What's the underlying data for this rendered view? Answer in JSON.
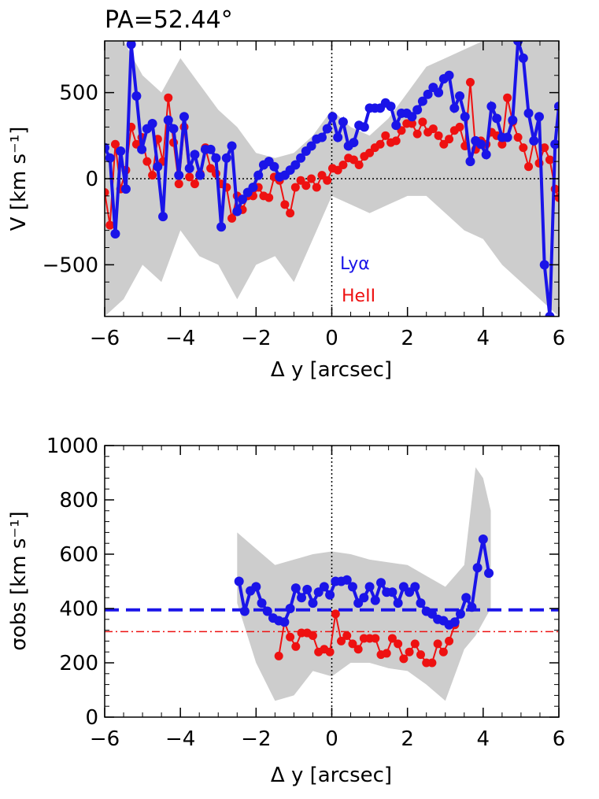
{
  "chart_data": [
    {
      "type": "line",
      "title": "PA=52.44°",
      "xlabel": "Δ y [arcsec]",
      "ylabel": "V [km s⁻¹]",
      "xlim": [
        -6,
        6
      ],
      "ylim": [
        -800,
        800
      ],
      "xticks": [
        "−6",
        "−4",
        "−2",
        "0",
        "2",
        "4",
        "6"
      ],
      "yticks": [
        "−500",
        "0",
        "500"
      ],
      "ytick_values": [
        -500,
        0,
        500
      ],
      "xtick_values": [
        -6,
        -4,
        -2,
        0,
        2,
        4,
        6
      ],
      "reference_lines": {
        "horizontal": 0,
        "vertical": 0
      },
      "annotations": [
        "Lyα",
        "HeII"
      ],
      "band": {
        "x": [
          -6.0,
          -5.5,
          -5.0,
          -4.5,
          -4.0,
          -3.5,
          -3.0,
          -2.5,
          -2.0,
          -1.5,
          -1.0,
          -0.5,
          0.0,
          0.5,
          1.0,
          1.5,
          2.0,
          2.5,
          3.0,
          3.5,
          4.0,
          4.5,
          5.0,
          5.5,
          6.0
        ],
        "upper": [
          800,
          800,
          600,
          500,
          700,
          550,
          400,
          300,
          150,
          120,
          150,
          250,
          400,
          300,
          250,
          350,
          500,
          650,
          700,
          750,
          800,
          800,
          800,
          800,
          800
        ],
        "lower": [
          -800,
          -700,
          -500,
          -600,
          -300,
          -450,
          -500,
          -700,
          -500,
          -450,
          -600,
          -350,
          -100,
          -150,
          -200,
          -150,
          -100,
          -100,
          -200,
          -300,
          -350,
          -500,
          -600,
          -700,
          -800
        ]
      },
      "series": [
        {
          "name": "Lyα",
          "color": "#1a14e8",
          "x": [
            -6.0,
            -5.86,
            -5.72,
            -5.58,
            -5.44,
            -5.3,
            -5.16,
            -5.02,
            -4.88,
            -4.74,
            -4.6,
            -4.46,
            -4.32,
            -4.18,
            -4.04,
            -3.9,
            -3.76,
            -3.62,
            -3.48,
            -3.34,
            -3.2,
            -3.06,
            -2.92,
            -2.78,
            -2.64,
            -2.5,
            -2.36,
            -2.22,
            -2.08,
            -1.94,
            -1.8,
            -1.66,
            -1.52,
            -1.38,
            -1.24,
            -1.1,
            -0.96,
            -0.82,
            -0.68,
            -0.54,
            -0.4,
            -0.26,
            -0.12,
            0.02,
            0.16,
            0.3,
            0.44,
            0.58,
            0.72,
            0.86,
            1.0,
            1.14,
            1.28,
            1.42,
            1.56,
            1.7,
            1.84,
            1.98,
            2.12,
            2.26,
            2.4,
            2.54,
            2.68,
            2.82,
            2.96,
            3.1,
            3.24,
            3.38,
            3.52,
            3.66,
            3.8,
            3.94,
            4.08,
            4.22,
            4.36,
            4.5,
            4.64,
            4.78,
            4.92,
            5.06,
            5.2,
            5.34,
            5.48,
            5.62,
            5.76,
            5.9,
            6.0
          ],
          "values": [
            180,
            120,
            -320,
            160,
            -60,
            780,
            480,
            170,
            290,
            320,
            70,
            -220,
            340,
            290,
            20,
            360,
            60,
            140,
            20,
            170,
            170,
            120,
            -280,
            120,
            190,
            -190,
            -120,
            -80,
            -50,
            20,
            80,
            100,
            70,
            10,
            20,
            50,
            80,
            120,
            160,
            190,
            230,
            240,
            290,
            360,
            240,
            330,
            190,
            210,
            310,
            300,
            410,
            410,
            410,
            440,
            420,
            310,
            380,
            380,
            360,
            400,
            450,
            490,
            530,
            500,
            580,
            600,
            410,
            480,
            360,
            100,
            220,
            200,
            140,
            420,
            350,
            240,
            240,
            340,
            800,
            700,
            380,
            220,
            360,
            -500,
            -800,
            200,
            420
          ]
        },
        {
          "name": "HeII",
          "color": "#ee1111",
          "x": [
            -6.0,
            -5.86,
            -5.72,
            -5.58,
            -5.44,
            -5.3,
            -5.16,
            -5.02,
            -4.88,
            -4.74,
            -4.6,
            -4.46,
            -4.32,
            -4.18,
            -4.04,
            -3.9,
            -3.76,
            -3.62,
            -3.48,
            -3.34,
            -3.2,
            -3.06,
            -2.92,
            -2.78,
            -2.64,
            -2.5,
            -2.36,
            -2.22,
            -2.08,
            -1.94,
            -1.8,
            -1.66,
            -1.52,
            -1.38,
            -1.24,
            -1.1,
            -0.96,
            -0.82,
            -0.68,
            -0.54,
            -0.4,
            -0.26,
            -0.12,
            0.02,
            0.16,
            0.3,
            0.44,
            0.58,
            0.72,
            0.86,
            1.0,
            1.14,
            1.28,
            1.42,
            1.56,
            1.7,
            1.84,
            1.98,
            2.12,
            2.26,
            2.4,
            2.54,
            2.68,
            2.82,
            2.96,
            3.1,
            3.24,
            3.38,
            3.52,
            3.66,
            3.8,
            3.94,
            4.08,
            4.22,
            4.36,
            4.5,
            4.64,
            4.78,
            4.92,
            5.06,
            5.2,
            5.34,
            5.48,
            5.62,
            5.76,
            5.9,
            6.0
          ],
          "values": [
            -80,
            -270,
            200,
            -60,
            50,
            300,
            200,
            240,
            100,
            20,
            230,
            100,
            470,
            210,
            -30,
            300,
            10,
            -30,
            30,
            180,
            60,
            30,
            -30,
            -50,
            -230,
            -100,
            -180,
            -100,
            -100,
            -50,
            -100,
            -110,
            10,
            -10,
            -150,
            -200,
            -50,
            -10,
            -40,
            0,
            -50,
            20,
            -10,
            60,
            50,
            80,
            120,
            110,
            80,
            130,
            150,
            180,
            200,
            250,
            210,
            220,
            280,
            320,
            320,
            260,
            330,
            270,
            290,
            250,
            200,
            230,
            280,
            300,
            190,
            560,
            170,
            220,
            200,
            270,
            250,
            200,
            470,
            330,
            240,
            180,
            70,
            220,
            90,
            180,
            110,
            -60,
            -110
          ]
        }
      ]
    },
    {
      "type": "line",
      "xlabel": "Δ y [arcsec]",
      "ylabel": "σobs [km s⁻¹]",
      "xlim": [
        -6,
        6
      ],
      "ylim": [
        0,
        1000
      ],
      "xticks": [
        "−6",
        "−4",
        "−2",
        "0",
        "2",
        "4",
        "6"
      ],
      "yticks": [
        "0",
        "200",
        "400",
        "600",
        "800",
        "1000"
      ],
      "ytick_values": [
        0,
        200,
        400,
        600,
        800,
        1000
      ],
      "xtick_values": [
        -6,
        -4,
        -2,
        0,
        2,
        4,
        6
      ],
      "reference_lines": {
        "vertical": 0,
        "lyalpha_mean": 395,
        "heii_mean": 315
      },
      "band": {
        "x": [
          -2.5,
          -2.0,
          -1.5,
          -1.0,
          -0.5,
          0.0,
          0.5,
          1.0,
          1.5,
          2.0,
          2.5,
          3.0,
          3.5,
          3.8,
          4.0,
          4.2
        ],
        "upper": [
          680,
          620,
          560,
          580,
          600,
          610,
          600,
          580,
          570,
          560,
          520,
          480,
          560,
          920,
          880,
          760
        ],
        "lower": [
          420,
          200,
          60,
          80,
          170,
          150,
          200,
          200,
          180,
          170,
          120,
          60,
          250,
          300,
          350,
          400
        ]
      },
      "series": [
        {
          "name": "Lyα",
          "color": "#1a14e8",
          "x": [
            -2.45,
            -2.3,
            -2.15,
            -2.0,
            -1.85,
            -1.7,
            -1.55,
            -1.4,
            -1.25,
            -1.1,
            -0.95,
            -0.8,
            -0.65,
            -0.5,
            -0.35,
            -0.2,
            -0.05,
            0.1,
            0.25,
            0.4,
            0.55,
            0.7,
            0.85,
            1.0,
            1.15,
            1.3,
            1.45,
            1.6,
            1.75,
            1.9,
            2.05,
            2.2,
            2.35,
            2.5,
            2.65,
            2.8,
            2.95,
            3.1,
            3.25,
            3.4,
            3.55,
            3.7,
            3.85,
            4.0,
            4.15
          ],
          "values": [
            500,
            390,
            465,
            480,
            420,
            390,
            365,
            355,
            350,
            400,
            475,
            440,
            470,
            420,
            460,
            480,
            450,
            500,
            500,
            505,
            480,
            420,
            440,
            480,
            430,
            495,
            460,
            460,
            420,
            480,
            460,
            480,
            420,
            390,
            380,
            360,
            355,
            340,
            350,
            380,
            440,
            405,
            550,
            655,
            530
          ]
        },
        {
          "name": "HeII",
          "color": "#ee1111",
          "x": [
            -1.4,
            -1.25,
            -1.1,
            -0.95,
            -0.8,
            -0.65,
            -0.5,
            -0.35,
            -0.2,
            -0.05,
            0.1,
            0.25,
            0.4,
            0.55,
            0.7,
            0.85,
            1.0,
            1.15,
            1.3,
            1.45,
            1.6,
            1.75,
            1.9,
            2.05,
            2.2,
            2.35,
            2.5,
            2.65,
            2.8,
            2.95,
            3.1,
            3.25
          ],
          "values": [
            225,
            350,
            295,
            260,
            310,
            310,
            300,
            240,
            250,
            240,
            380,
            280,
            300,
            270,
            250,
            290,
            290,
            290,
            230,
            235,
            290,
            270,
            215,
            240,
            270,
            230,
            200,
            200,
            270,
            240,
            280,
            340
          ]
        }
      ]
    }
  ]
}
